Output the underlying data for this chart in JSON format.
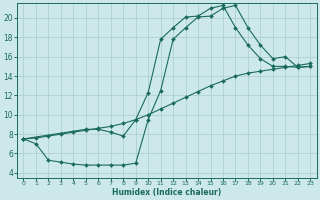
{
  "xlabel": "Humidex (Indice chaleur)",
  "bg_color": "#cce8e8",
  "grid_color": "#aacccc",
  "line_color": "#1a6b5a",
  "xlim": [
    -0.5,
    23.5
  ],
  "ylim": [
    3.5,
    21.5
  ],
  "yticks": [
    4,
    6,
    8,
    10,
    12,
    14,
    16,
    18,
    20
  ],
  "xticks": [
    0,
    1,
    2,
    3,
    4,
    5,
    6,
    7,
    8,
    9,
    10,
    11,
    12,
    13,
    14,
    15,
    16,
    17,
    18,
    19,
    20,
    21,
    22,
    23
  ],
  "curve1_x": [
    0,
    1,
    2,
    3,
    4,
    5,
    6,
    7,
    8,
    9,
    10,
    11,
    12,
    13,
    14,
    15,
    16,
    17,
    18,
    19,
    20,
    21,
    22,
    23
  ],
  "curve1_y": [
    7.5,
    7.0,
    5.3,
    5.1,
    4.9,
    4.8,
    4.8,
    4.8,
    4.8,
    5.0,
    9.5,
    12.5,
    17.8,
    19.0,
    20.1,
    20.2,
    21.0,
    21.3,
    19.0,
    17.2,
    15.8,
    16.0,
    14.9,
    15.0
  ],
  "curve2_x": [
    0,
    5,
    6,
    7,
    8,
    9,
    10,
    11,
    12,
    13,
    14,
    15,
    16,
    17,
    18,
    19,
    20,
    21,
    22,
    23
  ],
  "curve2_y": [
    7.5,
    8.5,
    8.5,
    8.2,
    7.8,
    9.5,
    12.3,
    17.8,
    19.0,
    20.1,
    20.2,
    21.0,
    21.3,
    19.0,
    17.2,
    15.8,
    15.0,
    15.0,
    14.9,
    15.0
  ],
  "curve3_x": [
    0,
    1,
    2,
    3,
    4,
    5,
    6,
    7,
    8,
    9,
    10,
    11,
    12,
    13,
    14,
    15,
    16,
    17,
    18,
    19,
    20,
    21,
    22,
    23
  ],
  "curve3_y": [
    7.5,
    7.6,
    7.8,
    8.0,
    8.2,
    8.4,
    8.6,
    8.8,
    9.1,
    9.5,
    10.0,
    10.6,
    11.2,
    11.8,
    12.4,
    13.0,
    13.5,
    14.0,
    14.3,
    14.5,
    14.7,
    14.9,
    15.1,
    15.3
  ]
}
